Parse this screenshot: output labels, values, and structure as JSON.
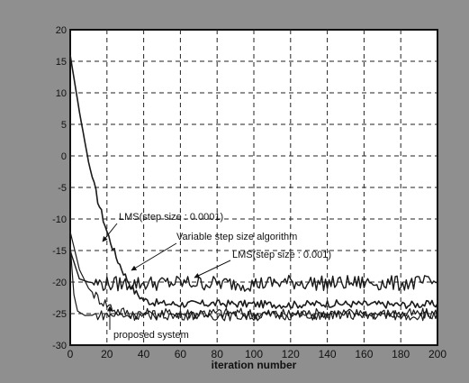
{
  "chart_data": {
    "type": "line",
    "xlabel": "iteration number",
    "ylabel": "",
    "xlim": [
      0,
      200
    ],
    "ylim": [
      -30,
      20
    ],
    "x_ticks": [
      "0",
      "20",
      "40",
      "60",
      "80",
      "100",
      "120",
      "140",
      "160",
      "180",
      "200"
    ],
    "y_ticks": [
      "20",
      "15",
      "10",
      "5",
      "0",
      "-5",
      "-10",
      "-15",
      "-20",
      "-25",
      "-30"
    ],
    "grid": true,
    "series": [
      {
        "name": "LMS(step size : 0.0001)",
        "color": "#1a1a1a",
        "x": [
          0,
          5,
          10,
          15,
          20,
          25,
          30,
          35,
          40,
          45,
          50,
          60,
          80,
          100,
          120,
          140,
          160,
          180,
          200
        ],
        "y": [
          16,
          7,
          -1,
          -7,
          -12,
          -16,
          -19,
          -21.5,
          -22.8,
          -23.2,
          -23.4,
          -23.5,
          -23.4,
          -23.5,
          -23.6,
          -23.4,
          -23.5,
          -23.6,
          -23.5
        ]
      },
      {
        "name": "Variable step size algorithm",
        "color": "#1a1a1a",
        "x": [
          0,
          5,
          10,
          15,
          20,
          25,
          30,
          35,
          40,
          45,
          50,
          60,
          80,
          100,
          120,
          140,
          160,
          180,
          200
        ],
        "y": [
          -12,
          -18,
          -21,
          -22.5,
          -23.5,
          -24.5,
          -24.8,
          -25,
          -25,
          -25.1,
          -25,
          -25,
          -24.9,
          -25,
          -25.1,
          -25,
          -25,
          -25.1,
          -25
        ]
      },
      {
        "name": "LMS(step size : 0.001)",
        "color": "#1a1a1a",
        "x": [
          0,
          5,
          10,
          15,
          20,
          40,
          60,
          80,
          100,
          120,
          140,
          160,
          180,
          200
        ],
        "y": [
          -15,
          -19.5,
          -20,
          -20.2,
          -20.3,
          -20.2,
          -20.1,
          -20.2,
          -20.3,
          -20,
          -20.2,
          -20.1,
          -20.2,
          -20.1
        ]
      },
      {
        "name": "proposed system",
        "color": "#1a1a1a",
        "x": [
          0,
          2,
          4,
          8,
          20,
          40,
          60,
          80,
          100,
          120,
          140,
          160,
          180,
          200
        ],
        "y": [
          -14,
          -22,
          -24.6,
          -25.3,
          -25.2,
          -25.3,
          -25.2,
          -25.3,
          -25.4,
          -25.2,
          -25.3,
          -25.2,
          -25.3,
          -25.3
        ]
      }
    ],
    "annotations": [
      {
        "text": "LMS(step size : 0.0001)",
        "series": 0
      },
      {
        "text": "Variable step size algorithm",
        "series": 1
      },
      {
        "text": "LMS(step size : 0.001)",
        "series": 2
      },
      {
        "text": "proposed system",
        "series": 3
      }
    ]
  }
}
